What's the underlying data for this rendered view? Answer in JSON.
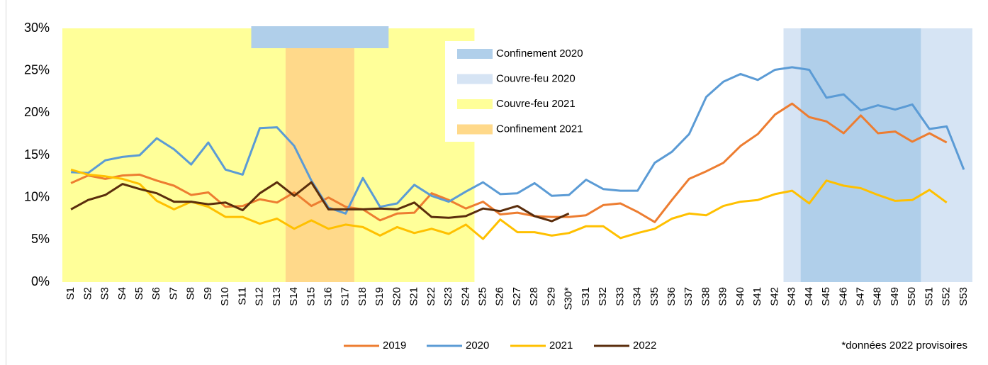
{
  "chart_data": {
    "type": "line",
    "categories": [
      "S1",
      "S2",
      "S3",
      "S4",
      "S5",
      "S6",
      "S7",
      "S8",
      "S9",
      "S10",
      "S11",
      "S12",
      "S13",
      "S14",
      "S15",
      "S16",
      "S17",
      "S18",
      "S19",
      "S20",
      "S21",
      "S22",
      "S23",
      "S24",
      "S25",
      "S26",
      "S27",
      "S28",
      "S29",
      "S30*",
      "S31",
      "S32",
      "S33",
      "S34",
      "S35",
      "S36",
      "S37",
      "S38",
      "S39",
      "S40",
      "S41",
      "S42",
      "S43",
      "S44",
      "S45",
      "S46",
      "S47",
      "S48",
      "S49",
      "S50",
      "S51",
      "S52",
      "S53"
    ],
    "series": [
      {
        "name": "2019",
        "color": "#ed7d31",
        "values": [
          11.7,
          12.6,
          12.2,
          12.6,
          12.7,
          12.0,
          11.4,
          10.3,
          10.6,
          8.9,
          9.0,
          9.8,
          9.4,
          10.6,
          9.0,
          10.0,
          8.9,
          8.6,
          7.3,
          8.1,
          8.2,
          10.5,
          9.7,
          8.7,
          9.5,
          8.0,
          8.2,
          7.8,
          7.7,
          7.7,
          7.9,
          9.1,
          9.3,
          8.3,
          7.1,
          9.7,
          12.2,
          13.1,
          14.1,
          16.1,
          17.5,
          19.8,
          21.1,
          19.5,
          19.0,
          17.6,
          19.7,
          17.6,
          17.8,
          16.6,
          17.6,
          16.5,
          null
        ]
      },
      {
        "name": "2020",
        "color": "#5b9bd5",
        "values": [
          13.0,
          12.9,
          14.4,
          14.8,
          15.0,
          17.0,
          15.7,
          13.9,
          16.5,
          13.3,
          12.7,
          18.2,
          18.3,
          16.1,
          12.0,
          8.8,
          8.1,
          12.3,
          8.9,
          9.3,
          11.5,
          10.2,
          9.5,
          10.7,
          11.8,
          10.4,
          10.5,
          11.7,
          10.2,
          10.3,
          12.1,
          11.0,
          10.8,
          10.8,
          14.1,
          15.4,
          17.5,
          21.9,
          23.7,
          24.6,
          23.9,
          25.1,
          25.4,
          25.1,
          21.8,
          22.2,
          20.3,
          20.9,
          20.4,
          21.0,
          18.1,
          18.4,
          13.3
        ]
      },
      {
        "name": "2021",
        "color": "#ffc000",
        "values": [
          13.3,
          12.7,
          12.5,
          12.2,
          11.6,
          9.6,
          8.6,
          9.5,
          8.9,
          7.7,
          7.7,
          6.9,
          7.5,
          6.3,
          7.3,
          6.3,
          6.8,
          6.5,
          5.5,
          6.5,
          5.8,
          6.3,
          5.7,
          6.8,
          5.1,
          7.4,
          5.9,
          5.9,
          5.5,
          5.8,
          6.6,
          6.6,
          5.2,
          5.8,
          6.3,
          7.5,
          8.1,
          7.9,
          9.0,
          9.5,
          9.7,
          10.4,
          10.8,
          9.3,
          12.0,
          11.4,
          11.1,
          10.3,
          9.6,
          9.7,
          10.9,
          9.4,
          null
        ]
      },
      {
        "name": "2022",
        "color": "#5a2d0c",
        "values": [
          8.6,
          9.7,
          10.3,
          11.6,
          11.0,
          10.5,
          9.5,
          9.5,
          9.2,
          9.4,
          8.5,
          10.5,
          11.8,
          10.2,
          11.8,
          8.6,
          8.6,
          8.6,
          8.7,
          8.6,
          9.4,
          7.7,
          7.6,
          7.8,
          8.7,
          8.4,
          9.0,
          7.8,
          7.2,
          8.1,
          null,
          null,
          null,
          null,
          null,
          null,
          null,
          null,
          null,
          null,
          null,
          null,
          null,
          null,
          null,
          null,
          null,
          null,
          null,
          null,
          null,
          null,
          null
        ]
      }
    ],
    "bands": [
      {
        "name": "Couvre-feu 2021",
        "color": "#ffff99",
        "spans": [
          {
            "from": "S1",
            "to": "S24"
          }
        ]
      },
      {
        "name": "Confinement 2021",
        "color": "#ffd98a",
        "spans": [
          {
            "from": "S14",
            "to": "S17"
          }
        ]
      },
      {
        "name": "Couvre-feu 2020",
        "color": "#d6e4f4",
        "spans": [
          {
            "from": "S43",
            "to": "S53"
          }
        ]
      },
      {
        "name": "Confinement 2020",
        "color": "#b0cfea",
        "spans": [
          {
            "from": "S12",
            "to": "S19",
            "top_only": true
          },
          {
            "from": "S44",
            "to": "S50"
          }
        ]
      }
    ],
    "band_legend_order": [
      "Confinement 2020",
      "Couvre-feu 2020",
      "Couvre-feu 2021",
      "Confinement 2021"
    ],
    "ylim": [
      0,
      30
    ],
    "yticks": [
      {
        "value": 0,
        "label": "0%"
      },
      {
        "value": 5,
        "label": "5%"
      },
      {
        "value": 10,
        "label": "10%"
      },
      {
        "value": 15,
        "label": "15%"
      },
      {
        "value": 20,
        "label": "20%"
      },
      {
        "value": 25,
        "label": "25%"
      },
      {
        "value": 30,
        "label": "30%"
      }
    ],
    "grid": false,
    "note": "*données 2022 provisoires"
  }
}
